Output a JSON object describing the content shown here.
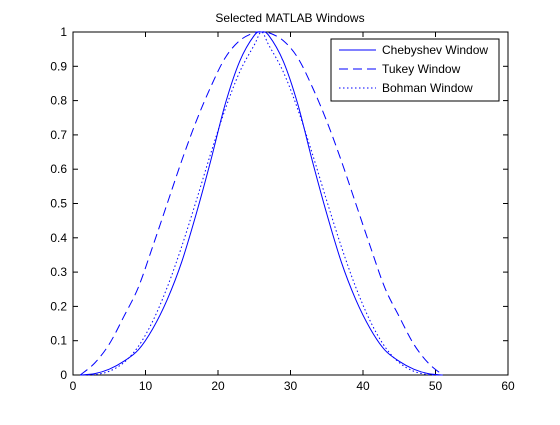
{
  "chart_data": {
    "type": "line",
    "title": "Selected MATLAB Windows",
    "xlabel": "",
    "ylabel": "",
    "xlim": [
      0,
      60
    ],
    "ylim": [
      0,
      1
    ],
    "xticks": [
      0,
      10,
      20,
      30,
      40,
      50,
      60
    ],
    "yticks": [
      0,
      0.1,
      0.2,
      0.3,
      0.4,
      0.5,
      0.6,
      0.7,
      0.8,
      0.9,
      1
    ],
    "xtick_labels": [
      "0",
      "10",
      "20",
      "30",
      "40",
      "50",
      "60"
    ],
    "ytick_labels": [
      "0",
      "0.1",
      "0.2",
      "0.3",
      "0.4",
      "0.5",
      "0.6",
      "0.7",
      "0.8",
      "0.9",
      "1"
    ],
    "grid": false,
    "legend_position": "top-right",
    "series": [
      {
        "name": "Chebyshev Window",
        "style": "solid",
        "color": "#0000ff",
        "x": [
          1,
          3,
          5,
          7,
          9,
          11,
          13,
          15,
          17,
          19,
          21,
          23,
          25,
          26,
          27,
          29,
          31,
          33,
          35,
          37,
          39,
          41,
          43,
          45,
          47,
          49,
          51
        ],
        "y": [
          0.0,
          0.004,
          0.017,
          0.04,
          0.073,
          0.135,
          0.22,
          0.33,
          0.47,
          0.625,
          0.79,
          0.915,
          0.99,
          1.0,
          0.99,
          0.915,
          0.79,
          0.625,
          0.47,
          0.33,
          0.22,
          0.135,
          0.073,
          0.04,
          0.017,
          0.004,
          0.0
        ]
      },
      {
        "name": "Tukey Window",
        "style": "dashed",
        "color": "#0000ff",
        "x": [
          1,
          3,
          5,
          7,
          9,
          11,
          13,
          15,
          17,
          19,
          21,
          23,
          25,
          26,
          27,
          29,
          31,
          33,
          35,
          37,
          39,
          41,
          43,
          45,
          47,
          49,
          51
        ],
        "y": [
          0.0,
          0.035,
          0.09,
          0.17,
          0.255,
          0.375,
          0.5,
          0.625,
          0.74,
          0.84,
          0.925,
          0.975,
          0.998,
          1.0,
          0.998,
          0.975,
          0.925,
          0.84,
          0.74,
          0.625,
          0.5,
          0.375,
          0.255,
          0.17,
          0.09,
          0.035,
          0.0
        ]
      },
      {
        "name": "Bohman Window",
        "style": "dotted",
        "color": "#0000ff",
        "x": [
          1,
          3,
          5,
          7,
          9,
          11,
          13,
          15,
          17,
          19,
          21,
          23,
          25,
          26,
          27,
          29,
          31,
          33,
          35,
          37,
          39,
          41,
          43,
          45,
          47,
          49,
          51
        ],
        "y": [
          0.0,
          0.001,
          0.011,
          0.036,
          0.083,
          0.157,
          0.256,
          0.375,
          0.508,
          0.646,
          0.775,
          0.884,
          0.962,
          1.0,
          0.962,
          0.884,
          0.775,
          0.646,
          0.508,
          0.375,
          0.256,
          0.157,
          0.083,
          0.036,
          0.011,
          0.001,
          0.0
        ]
      }
    ]
  }
}
